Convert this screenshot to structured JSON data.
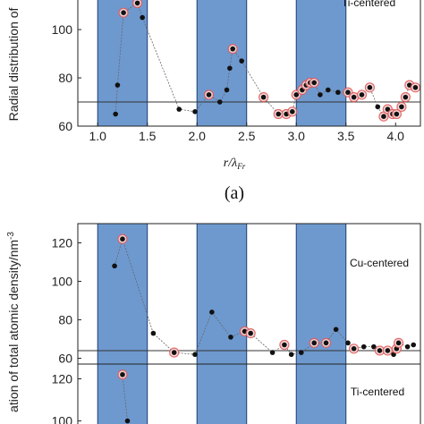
{
  "caption": "(a)",
  "colors": {
    "band": "#6e99cf",
    "band_stroke": "#1d3f77",
    "ring": "#e05b5b",
    "line": "#666666"
  },
  "chart_data": [
    {
      "type": "scatter",
      "panel_label": "Ti-centered",
      "ylabel": "Radial distribution of",
      "xlabel": "r/λFr",
      "xlabel_main": "r/λ",
      "xlabel_sub": "Fr",
      "xlim": [
        0.8,
        4.25
      ],
      "ylim": [
        60,
        113
      ],
      "xticks": [
        1.0,
        1.5,
        2.0,
        2.5,
        3.0,
        3.5,
        4.0
      ],
      "xtick_labels": [
        "1.0",
        "1.5",
        "2.0",
        "2.5",
        "3.0",
        "3.5",
        "4.0"
      ],
      "yticks": [
        60,
        80,
        100
      ],
      "ytick_labels": [
        "60",
        "80",
        "100"
      ],
      "bands": [
        [
          1.0,
          1.5
        ],
        [
          2.0,
          2.5
        ],
        [
          3.0,
          3.5
        ]
      ],
      "reference_y": 70,
      "x": [
        1.18,
        1.2,
        1.26,
        1.4,
        1.45,
        1.82,
        1.98,
        2.12,
        2.23,
        2.3,
        2.33,
        2.36,
        2.45,
        2.67,
        2.82,
        2.9,
        2.96,
        3.0,
        3.06,
        3.1,
        3.14,
        3.18,
        3.24,
        3.32,
        3.42,
        3.52,
        3.58,
        3.66,
        3.74,
        3.82,
        3.88,
        3.92,
        3.97,
        4.01,
        4.06,
        4.1,
        4.14,
        4.2
      ],
      "y": [
        65,
        77,
        107,
        111,
        105,
        67,
        66,
        73,
        70,
        75,
        84,
        92,
        87,
        72,
        65,
        65,
        66,
        73,
        75,
        77,
        78,
        78,
        73,
        75,
        74,
        74,
        72,
        73,
        76,
        68,
        64,
        67,
        65,
        65,
        68,
        72,
        77,
        76
      ],
      "ringed": [
        false,
        false,
        true,
        true,
        false,
        false,
        false,
        true,
        false,
        false,
        false,
        true,
        false,
        true,
        true,
        true,
        true,
        true,
        true,
        true,
        true,
        true,
        false,
        false,
        false,
        true,
        true,
        true,
        true,
        false,
        true,
        true,
        true,
        true,
        true,
        true,
        true,
        true
      ]
    },
    {
      "type": "scatter",
      "panel_label": "Cu-centered",
      "ylabel": "ation of total atomic density/nm",
      "ylabel_sup": "-3",
      "xlim": [
        0.8,
        4.25
      ],
      "ylim": [
        57,
        130
      ],
      "yticks": [
        60,
        80,
        100,
        120
      ],
      "ytick_labels": [
        "60",
        "80",
        "100",
        "120"
      ],
      "bands": [
        [
          1.0,
          1.5
        ],
        [
          2.0,
          2.5
        ],
        [
          3.0,
          3.5
        ]
      ],
      "reference_y": 64,
      "x": [
        1.17,
        1.25,
        1.56,
        1.77,
        1.98,
        2.15,
        2.34,
        2.48,
        2.54,
        2.76,
        2.88,
        2.95,
        3.05,
        3.18,
        3.3,
        3.4,
        3.52,
        3.58,
        3.68,
        3.78,
        3.84,
        3.92,
        3.98,
        4.01,
        4.03,
        4.12,
        4.18
      ],
      "y": [
        108,
        122,
        73,
        63,
        62,
        84,
        71,
        74,
        73,
        63,
        67,
        62,
        63,
        68,
        68,
        75,
        68,
        65,
        66,
        66,
        64,
        64,
        62,
        65,
        68,
        66,
        67
      ],
      "ringed": [
        false,
        true,
        false,
        true,
        false,
        false,
        false,
        true,
        true,
        false,
        true,
        false,
        false,
        true,
        true,
        false,
        false,
        true,
        false,
        false,
        true,
        true,
        false,
        true,
        true,
        false,
        false
      ]
    },
    {
      "type": "scatter",
      "panel_label": "Ti-centered",
      "xlim": [
        0.8,
        4.25
      ],
      "ylim": [
        96,
        127
      ],
      "yticks": [
        100,
        120
      ],
      "ytick_labels": [
        "100",
        "120"
      ],
      "bands": [
        [
          1.0,
          1.5
        ],
        [
          2.0,
          2.5
        ],
        [
          3.0,
          3.5
        ]
      ],
      "x": [
        1.25,
        1.3
      ],
      "y": [
        122,
        100
      ],
      "ringed": [
        true,
        false
      ]
    }
  ]
}
